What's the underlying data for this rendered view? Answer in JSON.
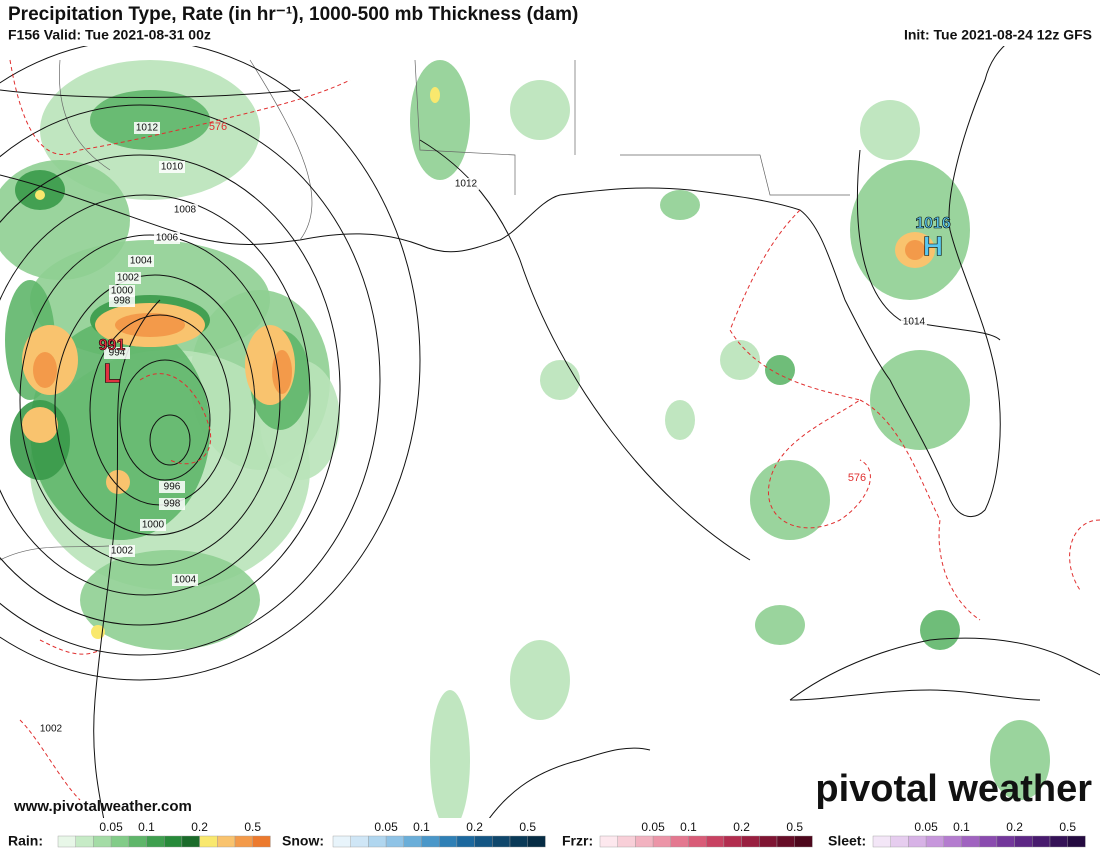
{
  "header": {
    "title": "Precipitation Type, Rate (in hr⁻¹), 1000-500 mb Thickness (dam)",
    "valid": "F156 Valid: Tue 2021-08-31 00z",
    "init": "Init: Tue 2021-08-24 12z GFS"
  },
  "map": {
    "isobar_labels": [
      "1012",
      "1010",
      "1008",
      "1006",
      "1004",
      "1002",
      "1000",
      "998",
      "994",
      "996",
      "998",
      "1000",
      "1002",
      "1004",
      "1012",
      "1014",
      "1002"
    ],
    "thickness_labels": [
      "576",
      "576"
    ],
    "centers": [
      {
        "pressure": "991",
        "symbol": "L"
      },
      {
        "pressure": "1016",
        "symbol": "H"
      }
    ]
  },
  "branding": {
    "logo": "pivotal weather",
    "url": "www.pivotalweather.com"
  },
  "legend": [
    {
      "label": "Rain:",
      "ticks": [
        "0.05",
        "0.1",
        "0.2",
        "0.5"
      ]
    },
    {
      "label": "Snow:",
      "ticks": [
        "0.05",
        "0.1",
        "0.2",
        "0.5"
      ]
    },
    {
      "label": "Frzr:",
      "ticks": [
        "0.05",
        "0.1",
        "0.2",
        "0.5"
      ]
    },
    {
      "label": "Sleet:",
      "ticks": [
        "0.05",
        "0.1",
        "0.2",
        "0.5"
      ]
    }
  ]
}
